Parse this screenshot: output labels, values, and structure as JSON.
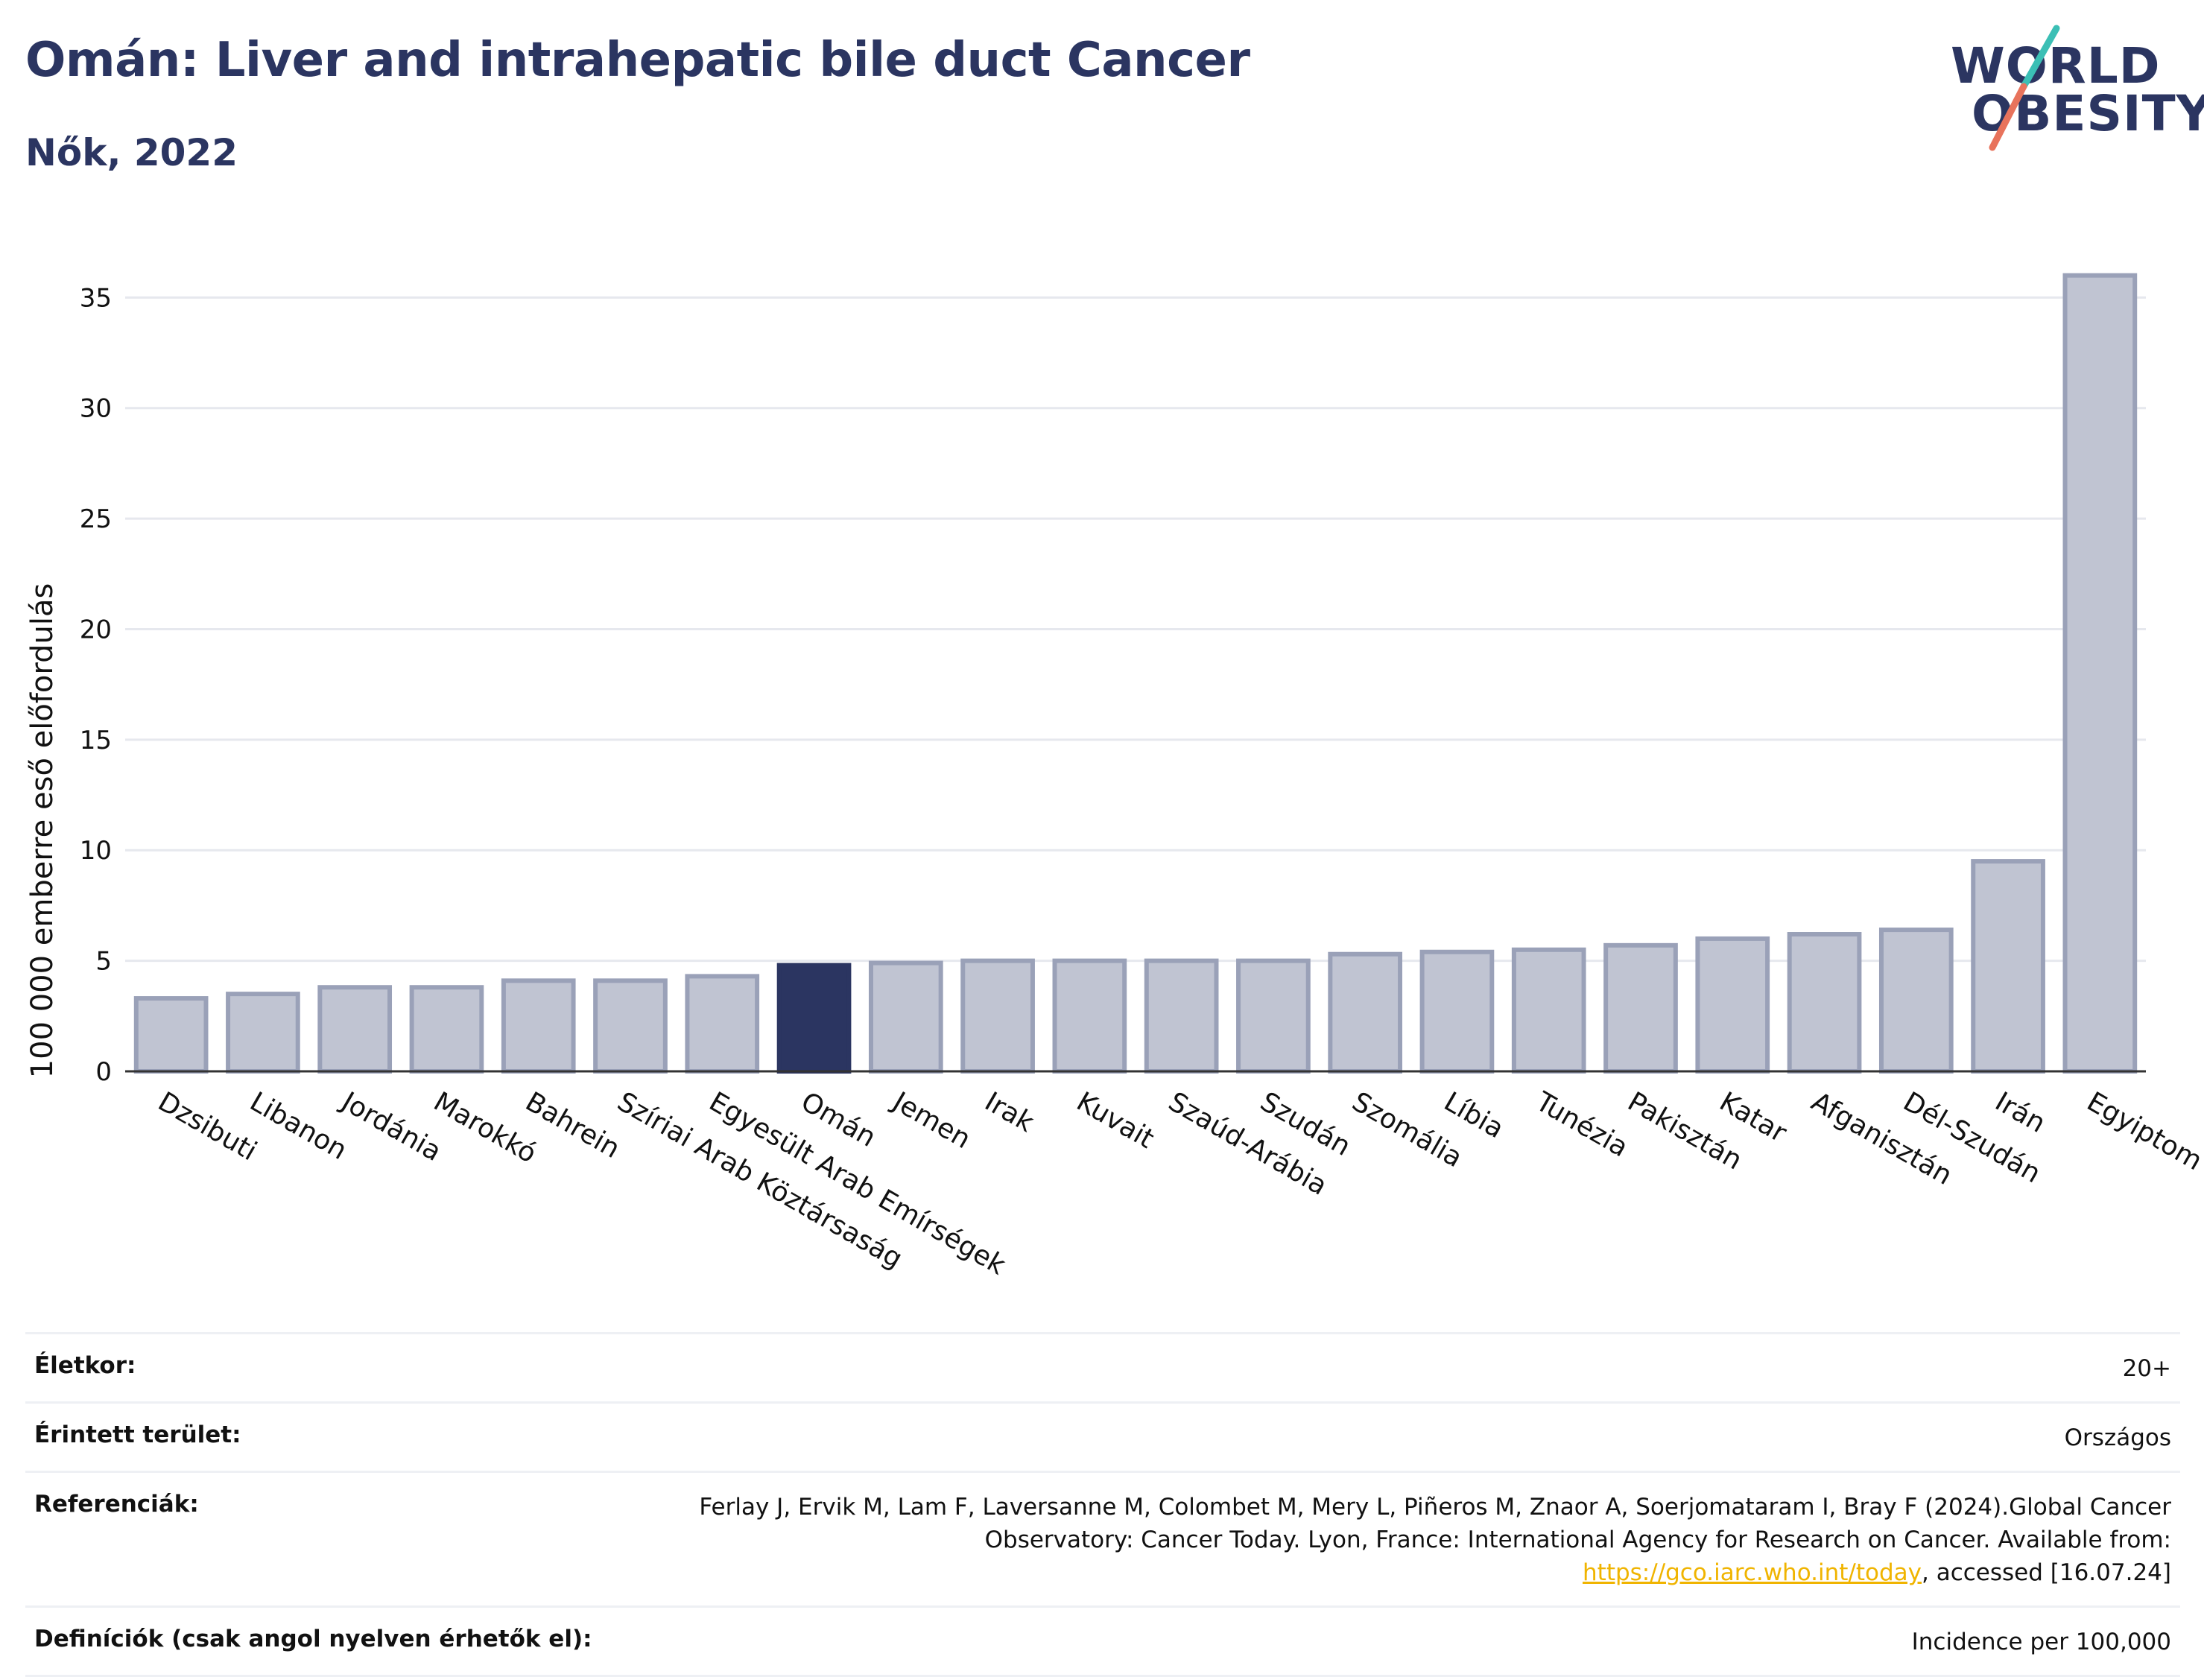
{
  "header": {
    "title": "Omán: Liver and intrahepatic bile duct Cancer",
    "subtitle": "Nők, 2022"
  },
  "logo": {
    "line1": "WORLD",
    "line2": "OBESITY"
  },
  "colors": {
    "highlight": "#2b3561",
    "bar": "#c0c4d2",
    "bar_edge": "#9aa1b8",
    "grid": "#e6e8ee",
    "link": "#f0b400"
  },
  "chart_data": {
    "type": "bar",
    "ylabel": "100 000 emberre eső előfordulás",
    "xlabel": "",
    "ylim": [
      0,
      37
    ],
    "yticks": [
      0,
      5,
      10,
      15,
      20,
      25,
      30,
      35
    ],
    "grid": true,
    "highlight": "Omán",
    "categories": [
      "Dzsibuti",
      "Libanon",
      "Jordánia",
      "Marokkó",
      "Bahrein",
      "Szíriai Arab Köztársaság",
      "Egyesült Arab Emírségek",
      "Omán",
      "Jemen",
      "Irak",
      "Kuvait",
      "Szaúd-Arábia",
      "Szudán",
      "Szomália",
      "Líbia",
      "Tunézia",
      "Pakisztán",
      "Katar",
      "Afganisztán",
      "Dél-Szudán",
      "Irán",
      "Egyiptom"
    ],
    "values": [
      3.3,
      3.5,
      3.8,
      3.8,
      4.1,
      4.1,
      4.3,
      4.8,
      4.9,
      5.0,
      5.0,
      5.0,
      5.0,
      5.3,
      5.4,
      5.5,
      5.7,
      6.0,
      6.2,
      6.4,
      9.5,
      36.0
    ]
  },
  "info": {
    "age_label": "Életkor:",
    "age_value": "20+",
    "area_label": "Érintett terület:",
    "area_value": "Országos",
    "ref_label": "Referenciák:",
    "ref_text1": "Ferlay J, Ervik M, Lam F, Laversanne M, Colombet M, Mery L, Piñeros M, Znaor A, Soerjomataram I, Bray F (2024).Global Cancer Observatory: Cancer Today. Lyon, France: International Agency for Research on Cancer. Available from: ",
    "ref_link": "https://gco.iarc.who.int/today",
    "ref_text2": ", accessed [16.07.24]",
    "def_label": "Definíciók (csak angol nyelven érhetők el):",
    "def_value": "Incidence per 100,000"
  }
}
